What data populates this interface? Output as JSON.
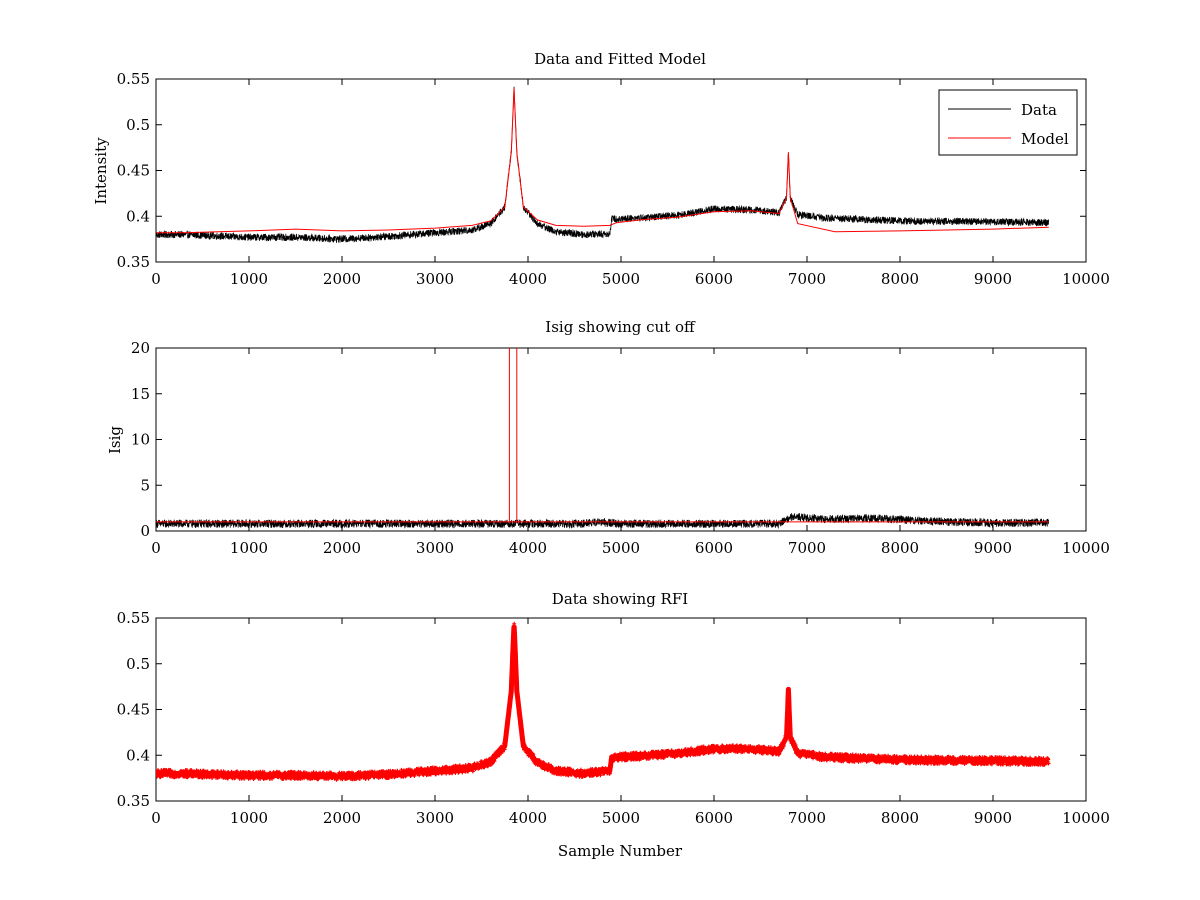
{
  "colors": {
    "data": "#000000",
    "model": "#ff0000",
    "rfi": "#ff0000",
    "axes": "#000000",
    "background": "#ffffff"
  },
  "chart_data": [
    {
      "type": "line",
      "title": "Data and Fitted Model",
      "xlabel": "",
      "ylabel": "Intensity",
      "xlim": [
        0,
        10000
      ],
      "ylim": [
        0.35,
        0.55
      ],
      "xticks": [
        "0",
        "1000",
        "2000",
        "3000",
        "4000",
        "5000",
        "6000",
        "7000",
        "8000",
        "9000",
        "10000"
      ],
      "yticks": [
        "0.35",
        "0.4",
        "0.45",
        "0.5",
        "0.55"
      ],
      "legend": {
        "position": "top-right",
        "entries": [
          "Data",
          "Model"
        ]
      },
      "n_samples": 9600,
      "series": [
        {
          "name": "Data",
          "color": "#000000",
          "noise": 0.004,
          "x": [
            0,
            300,
            1000,
            1500,
            2000,
            2500,
            3000,
            3400,
            3600,
            3750,
            3820,
            3850,
            3880,
            3950,
            4100,
            4300,
            4600,
            4880,
            4900,
            5200,
            5600,
            6000,
            6400,
            6700,
            6780,
            6800,
            6820,
            6900,
            7200,
            8000,
            9000,
            9600
          ],
          "y": [
            0.38,
            0.38,
            0.377,
            0.377,
            0.375,
            0.378,
            0.382,
            0.385,
            0.392,
            0.41,
            0.47,
            0.54,
            0.47,
            0.41,
            0.392,
            0.383,
            0.38,
            0.381,
            0.397,
            0.398,
            0.401,
            0.408,
            0.407,
            0.404,
            0.42,
            0.47,
            0.42,
            0.402,
            0.398,
            0.395,
            0.394,
            0.393
          ]
        },
        {
          "name": "Model",
          "color": "#ff0000",
          "noise": 0,
          "x": [
            0,
            300,
            1000,
            1500,
            2000,
            2500,
            3000,
            3400,
            3600,
            3750,
            3820,
            3850,
            3880,
            3950,
            4100,
            4300,
            4600,
            4880,
            4950,
            5200,
            5600,
            6000,
            6400,
            6700,
            6780,
            6800,
            6820,
            6900,
            7300,
            8000,
            9000,
            9600
          ],
          "y": [
            0.382,
            0.382,
            0.384,
            0.386,
            0.384,
            0.385,
            0.387,
            0.39,
            0.395,
            0.41,
            0.47,
            0.54,
            0.47,
            0.41,
            0.396,
            0.39,
            0.389,
            0.39,
            0.393,
            0.396,
            0.399,
            0.405,
            0.406,
            0.403,
            0.42,
            0.47,
            0.42,
            0.392,
            0.383,
            0.384,
            0.386,
            0.388
          ]
        }
      ]
    },
    {
      "type": "line",
      "title": "Isig showing cut off",
      "xlabel": "",
      "ylabel": "Isig",
      "xlim": [
        0,
        10000
      ],
      "ylim": [
        0,
        20
      ],
      "xticks": [
        "0",
        "1000",
        "2000",
        "3000",
        "4000",
        "5000",
        "6000",
        "7000",
        "8000",
        "9000",
        "10000"
      ],
      "yticks": [
        "0",
        "5",
        "10",
        "15",
        "20"
      ],
      "n_samples": 9600,
      "series": [
        {
          "name": "Isig",
          "color": "#000000",
          "noise": 0.45,
          "x": [
            0,
            3000,
            4600,
            4700,
            5000,
            6700,
            6800,
            6850,
            7200,
            7700,
            8500,
            9000,
            9600
          ],
          "y": [
            0.8,
            0.8,
            0.8,
            1.0,
            0.8,
            0.8,
            1.4,
            1.6,
            1.3,
            1.4,
            1.0,
            0.9,
            0.9
          ]
        },
        {
          "name": "Cut off",
          "color": "#ff0000",
          "noise": 0,
          "x": [
            0,
            3800,
            3800,
            3800,
            3800,
            3880,
            3880,
            3880,
            3880,
            9600
          ],
          "y": [
            1.0,
            1.0,
            20,
            20,
            1.0,
            1.0,
            20,
            20,
            1.0,
            1.0
          ]
        }
      ]
    },
    {
      "type": "scatter",
      "title": "Data showing RFI",
      "xlabel": "Sample Number",
      "ylabel": "",
      "xlim": [
        0,
        10000
      ],
      "ylim": [
        0.35,
        0.55
      ],
      "xticks": [
        "0",
        "1000",
        "2000",
        "3000",
        "4000",
        "5000",
        "6000",
        "7000",
        "8000",
        "9000",
        "10000"
      ],
      "yticks": [
        "0.35",
        "0.4",
        "0.45",
        "0.5",
        "0.55"
      ],
      "n_samples": 9600,
      "series": [
        {
          "name": "RFI",
          "color": "#ff0000",
          "noise": 0.004,
          "x": [
            0,
            300,
            1000,
            1500,
            2000,
            2500,
            3000,
            3400,
            3600,
            3750,
            3820,
            3850,
            3880,
            3950,
            4100,
            4300,
            4600,
            4880,
            4900,
            5200,
            5600,
            6000,
            6400,
            6700,
            6780,
            6800,
            6820,
            6900,
            7200,
            8000,
            9000,
            9600
          ],
          "y": [
            0.38,
            0.38,
            0.378,
            0.378,
            0.377,
            0.379,
            0.383,
            0.386,
            0.393,
            0.41,
            0.47,
            0.545,
            0.47,
            0.41,
            0.392,
            0.383,
            0.38,
            0.383,
            0.398,
            0.399,
            0.402,
            0.407,
            0.407,
            0.404,
            0.42,
            0.472,
            0.42,
            0.402,
            0.398,
            0.395,
            0.394,
            0.393
          ]
        }
      ]
    }
  ]
}
